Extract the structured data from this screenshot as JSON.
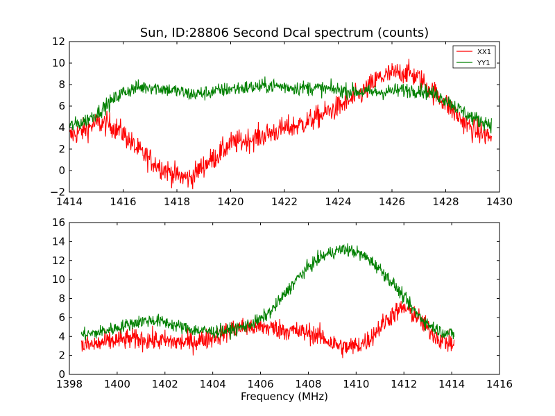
{
  "figure": {
    "title": "Sun, ID:28806 Second Dcal spectrum (counts)",
    "xlabel": "Frequency (MHz)"
  },
  "chart_data": [
    {
      "type": "line",
      "title": "Sun, ID:28806 Second Dcal spectrum (counts)",
      "xlabel": "",
      "ylabel": "",
      "xlim": [
        1414,
        1430
      ],
      "ylim": [
        -2,
        12
      ],
      "xticks": [
        1414,
        1416,
        1418,
        1420,
        1422,
        1424,
        1426,
        1428,
        1430
      ],
      "xtick_labels": [
        "1414",
        "1416",
        "1418",
        "1420",
        "1422",
        "1424",
        "1426",
        "1428",
        "1430"
      ],
      "yticks": [
        -2,
        0,
        2,
        4,
        6,
        8,
        10,
        12
      ],
      "ytick_labels": [
        "−2",
        "0",
        "2",
        "4",
        "6",
        "8",
        "10",
        "12"
      ],
      "legend": {
        "position": "top-right",
        "entries": [
          "XX1",
          "YY1"
        ]
      },
      "series": [
        {
          "name": "XX1",
          "color": "#ff0000",
          "x": [
            1414.0,
            1414.5,
            1415.0,
            1415.5,
            1416.0,
            1416.5,
            1417.0,
            1417.5,
            1418.0,
            1418.5,
            1419.0,
            1419.5,
            1420.0,
            1420.5,
            1421.0,
            1421.5,
            1422.0,
            1422.5,
            1423.0,
            1423.5,
            1424.0,
            1424.5,
            1425.0,
            1425.5,
            1426.0,
            1426.5,
            1427.0,
            1427.5,
            1428.0,
            1428.5,
            1429.0,
            1429.7
          ],
          "y": [
            3.2,
            3.7,
            4.4,
            4.3,
            3.5,
            2.0,
            1.0,
            0.2,
            -0.5,
            -0.7,
            0.5,
            1.4,
            2.5,
            2.8,
            3.1,
            3.5,
            3.9,
            4.2,
            4.7,
            5.3,
            5.9,
            6.6,
            7.4,
            8.6,
            9.0,
            9.2,
            8.6,
            7.4,
            6.3,
            4.9,
            3.8,
            3.1
          ]
        },
        {
          "name": "YY1",
          "color": "#008000",
          "x": [
            1414.0,
            1414.5,
            1415.0,
            1415.5,
            1416.0,
            1416.5,
            1417.0,
            1417.5,
            1418.0,
            1418.5,
            1419.0,
            1419.5,
            1420.0,
            1420.5,
            1421.0,
            1421.5,
            1422.0,
            1422.5,
            1423.0,
            1423.5,
            1424.0,
            1424.5,
            1425.0,
            1425.5,
            1426.0,
            1426.5,
            1427.0,
            1427.5,
            1428.0,
            1428.5,
            1429.0,
            1429.7
          ],
          "y": [
            4.1,
            4.5,
            5.3,
            6.3,
            7.3,
            7.7,
            7.8,
            7.6,
            7.4,
            7.1,
            7.2,
            7.4,
            7.6,
            7.7,
            7.8,
            7.9,
            7.8,
            7.7,
            7.7,
            7.6,
            7.5,
            7.4,
            7.3,
            7.3,
            7.4,
            7.5,
            7.5,
            7.2,
            6.6,
            5.7,
            4.9,
            4.3
          ]
        }
      ]
    },
    {
      "type": "line",
      "title": "",
      "xlabel": "Frequency (MHz)",
      "ylabel": "",
      "xlim": [
        1398,
        1416
      ],
      "ylim": [
        0,
        16
      ],
      "xticks": [
        1398,
        1400,
        1402,
        1404,
        1406,
        1408,
        1410,
        1412,
        1414,
        1416
      ],
      "xtick_labels": [
        "1398",
        "1400",
        "1402",
        "1404",
        "1406",
        "1408",
        "1410",
        "1412",
        "1414",
        "1416"
      ],
      "yticks": [
        0,
        2,
        4,
        6,
        8,
        10,
        12,
        14,
        16
      ],
      "ytick_labels": [
        "0",
        "2",
        "4",
        "6",
        "8",
        "10",
        "12",
        "14",
        "16"
      ],
      "series": [
        {
          "name": "XX1",
          "color": "#ff0000",
          "x": [
            1398.5,
            1399.0,
            1399.5,
            1400.0,
            1400.5,
            1401.0,
            1401.5,
            1402.0,
            1402.5,
            1403.0,
            1403.5,
            1404.0,
            1404.5,
            1405.0,
            1405.5,
            1406.0,
            1406.5,
            1407.0,
            1407.5,
            1408.0,
            1408.5,
            1409.0,
            1409.5,
            1410.0,
            1410.5,
            1411.0,
            1411.5,
            1412.0,
            1412.5,
            1413.0,
            1413.5,
            1414.1
          ],
          "y": [
            3.0,
            3.1,
            3.4,
            3.6,
            3.7,
            3.7,
            3.6,
            3.5,
            3.4,
            3.4,
            3.6,
            3.9,
            4.4,
            4.9,
            5.0,
            5.0,
            4.9,
            4.7,
            4.5,
            4.4,
            4.0,
            3.3,
            2.8,
            3.0,
            3.6,
            5.0,
            6.3,
            7.0,
            6.2,
            4.8,
            3.7,
            3.1
          ]
        },
        {
          "name": "YY1",
          "color": "#008000",
          "x": [
            1398.5,
            1399.0,
            1399.5,
            1400.0,
            1400.5,
            1401.0,
            1401.5,
            1402.0,
            1402.5,
            1403.0,
            1403.5,
            1404.0,
            1404.5,
            1405.0,
            1405.5,
            1406.0,
            1406.5,
            1407.0,
            1407.5,
            1408.0,
            1408.5,
            1409.0,
            1409.5,
            1410.0,
            1410.5,
            1411.0,
            1411.5,
            1412.0,
            1412.5,
            1413.0,
            1413.5,
            1414.1
          ],
          "y": [
            4.2,
            4.3,
            4.6,
            4.9,
            5.3,
            5.6,
            5.7,
            5.5,
            5.1,
            4.8,
            4.6,
            4.5,
            4.6,
            4.8,
            5.2,
            5.8,
            6.8,
            8.4,
            10.0,
            11.3,
            12.3,
            12.9,
            13.2,
            12.9,
            12.2,
            11.1,
            9.7,
            8.1,
            6.5,
            5.3,
            4.6,
            4.2
          ]
        }
      ]
    }
  ]
}
